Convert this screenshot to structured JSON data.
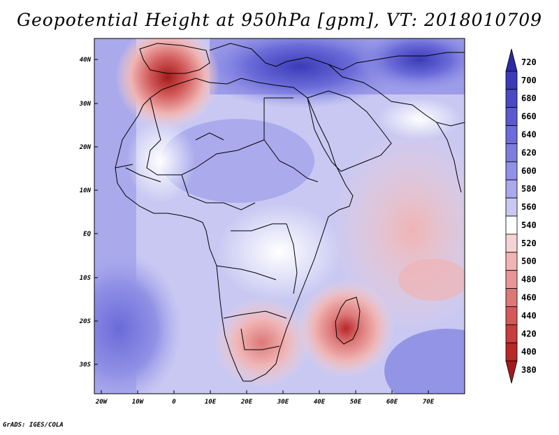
{
  "title": "Geopotential Height at 950hPa [gpm], VT: 2018010709",
  "credit": "GrADS: IGES/COLA",
  "lat_labels": [
    "40N",
    "30N",
    "20N",
    "10N",
    "EQ",
    "10S",
    "20S",
    "30S"
  ],
  "lon_labels": [
    "20W",
    "10W",
    "0",
    "10E",
    "20E",
    "30E",
    "40E",
    "50E",
    "60E",
    "70E"
  ],
  "colorbar": {
    "levels": [
      "720",
      "700",
      "680",
      "660",
      "640",
      "620",
      "600",
      "580",
      "560",
      "540",
      "520",
      "500",
      "480",
      "460",
      "440",
      "420",
      "400",
      "380"
    ],
    "colors": [
      "#2b2aa7",
      "#3b3bb8",
      "#4a4ac4",
      "#5a5ad0",
      "#6b6bd9",
      "#7d7de0",
      "#9191e6",
      "#a9a9ec",
      "#c8c8f3",
      "#ffffff",
      "#f6d3d3",
      "#f0b4b4",
      "#e79696",
      "#dd7878",
      "#d25a5a",
      "#c63e3e",
      "#b82828",
      "#a41a1a"
    ]
  },
  "map": {
    "domain": "20W-80E, 37S-45N",
    "field": "Geopotential height 950hPa",
    "low_pressure_centers": [
      "Iberia",
      "Madagascar",
      "Southern Africa"
    ]
  }
}
